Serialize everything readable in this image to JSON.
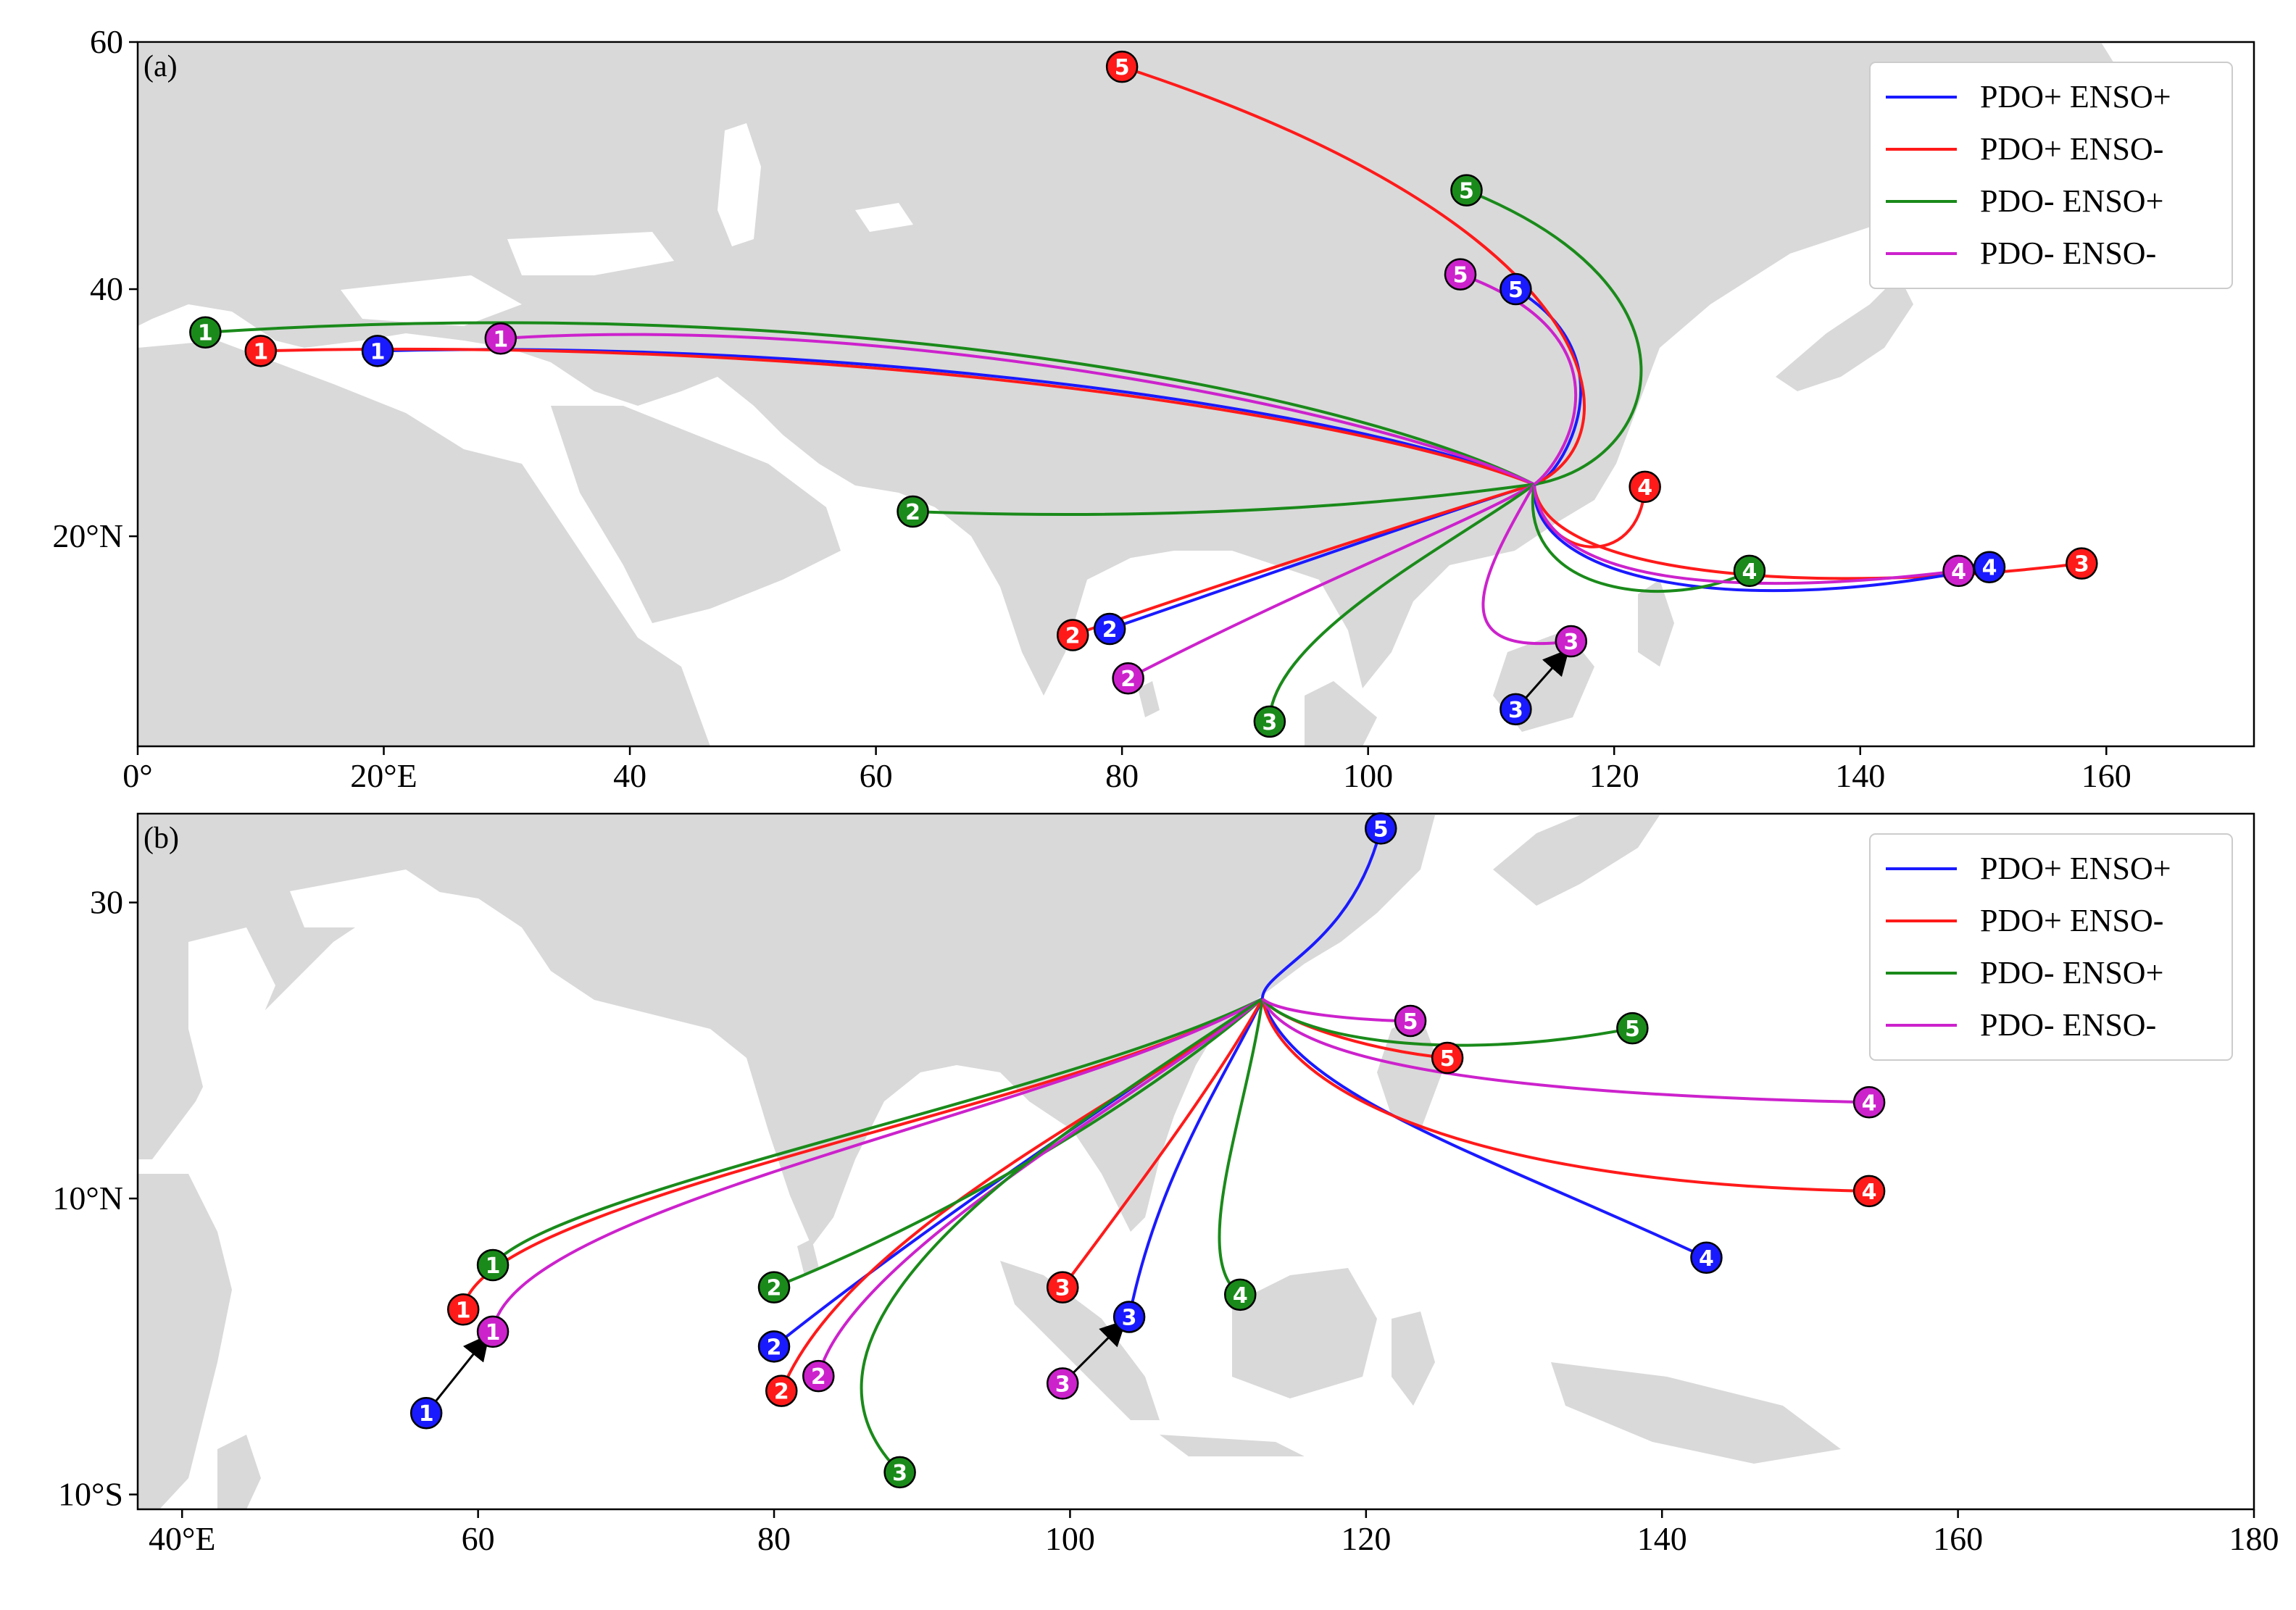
{
  "panels": [
    {
      "label": "(a)",
      "xlim": [
        0,
        172
      ],
      "ylim": [
        3,
        60
      ],
      "x_ticks": [
        {
          "v": 0,
          "label": "0°"
        },
        {
          "v": 20,
          "label": "20°E"
        },
        {
          "v": 40,
          "label": "40"
        },
        {
          "v": 60,
          "label": "60"
        },
        {
          "v": 80,
          "label": "80"
        },
        {
          "v": 100,
          "label": "100"
        },
        {
          "v": 120,
          "label": "120"
        },
        {
          "v": 140,
          "label": "140"
        },
        {
          "v": 160,
          "label": "160"
        }
      ],
      "y_ticks": [
        {
          "v": 20,
          "label": "20°N"
        },
        {
          "v": 40,
          "label": "40"
        },
        {
          "v": 60,
          "label": "60"
        }
      ],
      "center": [
        113.5,
        24.2
      ],
      "tracks": [
        {
          "series": 0,
          "n": "1",
          "end": [
            19.5,
            35.0
          ],
          "via": [
            [
              60,
              36
            ],
            [
              100,
              30
            ]
          ]
        },
        {
          "series": 1,
          "n": "1",
          "end": [
            10.0,
            35.0
          ],
          "via": [
            [
              60,
              36.2
            ],
            [
              100,
              29.5
            ]
          ]
        },
        {
          "series": 2,
          "n": "1",
          "end": [
            5.5,
            36.5
          ],
          "via": [
            [
              60,
              40
            ],
            [
              100,
              31
            ]
          ]
        },
        {
          "series": 3,
          "n": "1",
          "end": [
            29.5,
            36.0
          ],
          "via": [
            [
              60,
              38
            ],
            [
              100,
              30.5
            ]
          ]
        },
        {
          "series": 0,
          "n": "2",
          "end": [
            79.0,
            12.5
          ],
          "via": [
            [
              95,
              18
            ],
            [
              108,
              22.5
            ]
          ]
        },
        {
          "series": 1,
          "n": "2",
          "end": [
            76.0,
            12.0
          ],
          "via": [
            [
              95,
              18.5
            ],
            [
              108,
              22.5
            ]
          ]
        },
        {
          "series": 2,
          "n": "2",
          "end": [
            63.0,
            22.0
          ],
          "via": [
            [
              90,
              21
            ],
            [
              108,
              23.5
            ]
          ]
        },
        {
          "series": 3,
          "n": "2",
          "end": [
            80.5,
            8.5
          ],
          "via": [
            [
              95,
              16
            ],
            [
              108,
              21
            ]
          ]
        },
        {
          "series": 0,
          "n": "3",
          "end": [
            112.0,
            6.0
          ],
          "via": [
            [],
            []
          ],
          "marker_only": true
        },
        {
          "series": 1,
          "n": "3",
          "end": [
            158.0,
            17.8
          ],
          "via": [
            [
              135,
              15
            ],
            [
              114,
              17
            ]
          ]
        },
        {
          "series": 2,
          "n": "3",
          "end": [
            92.0,
            5.0
          ],
          "via": [
            [
              92,
              12
            ],
            [
              108,
              20
            ]
          ]
        },
        {
          "series": 3,
          "n": "3",
          "end": [
            116.5,
            11.5
          ],
          "via": [
            [
              105,
              10
            ],
            [
              110,
              18
            ]
          ]
        },
        {
          "series": 0,
          "n": "4",
          "end": [
            150.5,
            17.5
          ],
          "via": [
            [
              128,
              13
            ],
            [
              113,
              17
            ]
          ]
        },
        {
          "series": 1,
          "n": "4",
          "end": [
            122.5,
            24.0
          ],
          "via": [
            [
              122,
              17
            ],
            [
              114,
              18
            ]
          ]
        },
        {
          "series": 2,
          "n": "4",
          "end": [
            131.0,
            17.2
          ],
          "via": [
            [
              125,
              14
            ],
            [
              112,
              15
            ]
          ]
        },
        {
          "series": 3,
          "n": "4",
          "end": [
            148.0,
            17.2
          ],
          "via": [
            [
              130,
              15
            ],
            [
              114,
              16
            ]
          ]
        },
        {
          "series": 0,
          "n": "5",
          "end": [
            112.0,
            40.0
          ],
          "via": [
            [
              122,
              34
            ],
            [
              115,
              24
            ]
          ]
        },
        {
          "series": 1,
          "n": "5",
          "end": [
            80.0,
            58.0
          ],
          "via": [
            [
              120,
              45
            ],
            [
              122,
              28
            ]
          ]
        },
        {
          "series": 2,
          "n": "5",
          "end": [
            108.0,
            48.0
          ],
          "via": [
            [
              128,
              40
            ],
            [
              124,
              26
            ]
          ]
        },
        {
          "series": 3,
          "n": "5",
          "end": [
            107.5,
            41.2
          ],
          "via": [
            [
              122,
              36
            ],
            [
              116,
              26
            ]
          ]
        }
      ],
      "arrows": [
        {
          "from": [
            112.0,
            6.0
          ],
          "to": [
            116.0,
            10.5
          ]
        }
      ]
    },
    {
      "label": "(b)",
      "xlim": [
        37,
        180
      ],
      "ylim": [
        -11,
        36
      ],
      "x_ticks": [
        {
          "v": 40,
          "label": "40°E"
        },
        {
          "v": 60,
          "label": "60"
        },
        {
          "v": 80,
          "label": "80"
        },
        {
          "v": 100,
          "label": "100"
        },
        {
          "v": 120,
          "label": "120"
        },
        {
          "v": 140,
          "label": "140"
        },
        {
          "v": 160,
          "label": "160"
        },
        {
          "v": 180,
          "label": "180"
        }
      ],
      "y_ticks": [
        {
          "v": -10,
          "label": "10°S"
        },
        {
          "v": 10,
          "label": "10°N"
        },
        {
          "v": 30,
          "label": "30"
        }
      ],
      "center": [
        113.0,
        23.5
      ],
      "tracks": [
        {
          "series": 0,
          "n": "1",
          "end": [
            56.5,
            -4.5
          ],
          "via": [
            [],
            []
          ],
          "marker_only": true
        },
        {
          "series": 1,
          "n": "1",
          "end": [
            59.0,
            2.5
          ],
          "via": [
            [
              60,
              10
            ],
            [
              100,
              16
            ]
          ]
        },
        {
          "series": 2,
          "n": "1",
          "end": [
            61.0,
            5.5
          ],
          "via": [
            [
              65,
              10.5
            ],
            [
              100,
              17
            ]
          ]
        },
        {
          "series": 3,
          "n": "1",
          "end": [
            61.0,
            1.0
          ],
          "via": [
            [
              62,
              9.5
            ],
            [
              100,
              16
            ]
          ]
        },
        {
          "series": 0,
          "n": "2",
          "end": [
            80.0,
            0.0
          ],
          "via": [
            [
              90,
              8
            ],
            [
              105,
              18
            ]
          ]
        },
        {
          "series": 1,
          "n": "2",
          "end": [
            80.5,
            -3.0
          ],
          "via": [
            [
              85,
              8
            ],
            [
              105,
              17
            ]
          ]
        },
        {
          "series": 2,
          "n": "2",
          "end": [
            80.0,
            4.0
          ],
          "via": [
            [
              95,
              10
            ],
            [
              108,
              19
            ]
          ]
        },
        {
          "series": 3,
          "n": "2",
          "end": [
            83.0,
            -2.0
          ],
          "via": [
            [
              85,
              6
            ],
            [
              105,
              17
            ]
          ]
        },
        {
          "series": 0,
          "n": "3",
          "end": [
            104.0,
            2.0
          ],
          "via": [
            [
              106,
              12
            ],
            [
              111,
              19
            ]
          ]
        },
        {
          "series": 1,
          "n": "3",
          "end": [
            99.5,
            4.0
          ],
          "via": [
            [
              104,
              10
            ],
            [
              110,
              18
            ]
          ]
        },
        {
          "series": 2,
          "n": "3",
          "end": [
            88.5,
            -8.5
          ],
          "via": [
            [
              78,
              2
            ],
            [
              102,
              16
            ]
          ]
        },
        {
          "series": 3,
          "n": "3",
          "end": [
            99.5,
            -2.5
          ],
          "via": [
            [],
            []
          ],
          "marker_only": true
        },
        {
          "series": 0,
          "n": "4",
          "end": [
            143.0,
            6.0
          ],
          "via": [
            [
              128,
              13
            ],
            [
              115,
              17
            ]
          ]
        },
        {
          "series": 1,
          "n": "4",
          "end": [
            154.0,
            10.5
          ],
          "via": [
            [
              125,
              11
            ],
            [
              114,
              18
            ]
          ]
        },
        {
          "series": 2,
          "n": "4",
          "end": [
            111.5,
            3.5
          ],
          "via": [
            [
              108,
              6
            ],
            [
              112,
              16
            ]
          ]
        },
        {
          "series": 3,
          "n": "4",
          "end": [
            154.0,
            16.5
          ],
          "via": [
            [
              130,
              17
            ],
            [
              115,
              19
            ]
          ]
        },
        {
          "series": 0,
          "n": "5",
          "end": [
            121.0,
            35.0
          ],
          "via": [
            [
              119,
              27
            ],
            [
              113,
              25.5
            ]
          ]
        },
        {
          "series": 1,
          "n": "5",
          "end": [
            125.5,
            19.5
          ],
          "via": [
            [
              120,
              20
            ],
            [
              114,
              22
            ]
          ]
        },
        {
          "series": 2,
          "n": "5",
          "end": [
            138.0,
            21.5
          ],
          "via": [
            [
              125,
              19
            ],
            [
              115,
              21
            ]
          ]
        },
        {
          "series": 3,
          "n": "5",
          "end": [
            123.0,
            22.0
          ],
          "via": [
            [
              120,
              22
            ],
            [
              114,
              22.5
            ]
          ]
        }
      ],
      "arrows": [
        {
          "from": [
            56.5,
            -4.5
          ],
          "to": [
            60.5,
            0.5
          ]
        },
        {
          "from": [
            99.5,
            -2.5
          ],
          "to": [
            103.5,
            1.5
          ]
        }
      ]
    }
  ],
  "legend": [
    {
      "label": "PDO+ ENSO+",
      "color": "#1a1aff"
    },
    {
      "label": "PDO+ ENSO-",
      "color": "#ff1a1a"
    },
    {
      "label": "PDO- ENSO+",
      "color": "#1a8a1a"
    },
    {
      "label": "PDO- ENSO-",
      "color": "#cc22cc"
    }
  ],
  "land_color": "#d9d9d9"
}
